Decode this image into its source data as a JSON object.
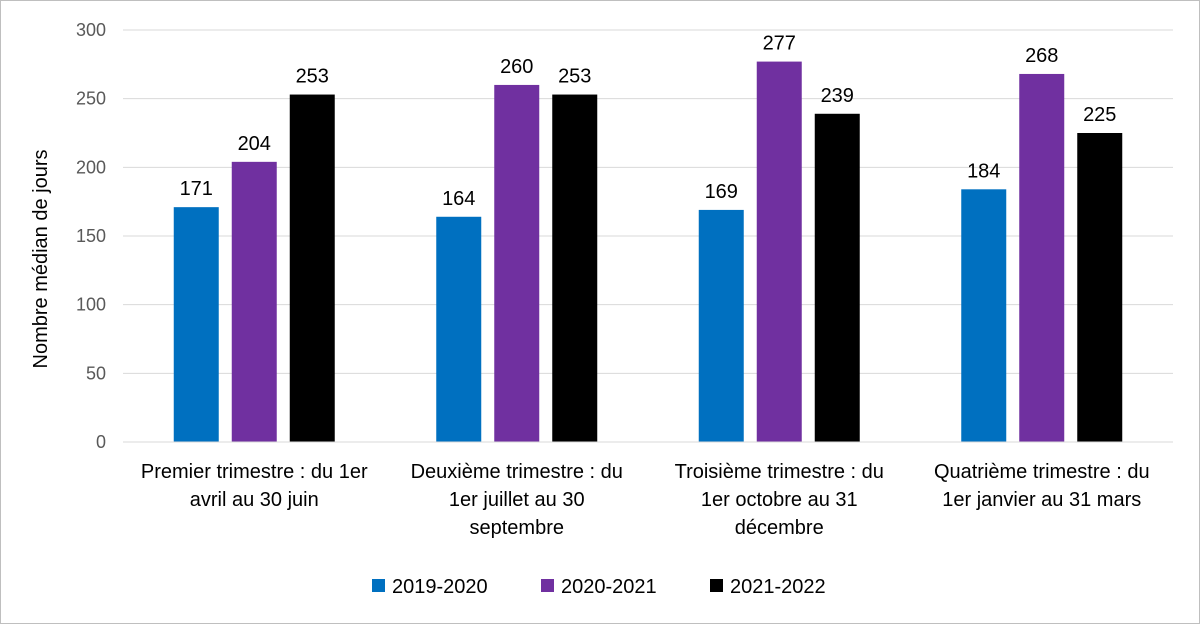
{
  "chart_data": {
    "type": "bar",
    "ylabel": "Nombre médian de jours",
    "ylim": [
      0,
      300
    ],
    "yticks": [
      0,
      50,
      100,
      150,
      200,
      250,
      300
    ],
    "grid": true,
    "legend_position": "bottom",
    "categories": [
      [
        "Premier trimestre : du 1er",
        "avril au 30 juin"
      ],
      [
        "Deuxième trimestre : du",
        "1er juillet au 30",
        "septembre"
      ],
      [
        "Troisième trimestre : du",
        "1er octobre au 31",
        "décembre"
      ],
      [
        "Quatrième trimestre : du",
        "1er janvier au 31 mars"
      ]
    ],
    "series": [
      {
        "name": "2019-2020",
        "color": "#0070c0",
        "values": [
          171,
          164,
          169,
          184
        ]
      },
      {
        "name": "2020-2021",
        "color": "#7030a0",
        "values": [
          204,
          260,
          277,
          268
        ]
      },
      {
        "name": "2021-2022",
        "color": "#000000",
        "values": [
          253,
          253,
          239,
          225
        ]
      }
    ]
  }
}
